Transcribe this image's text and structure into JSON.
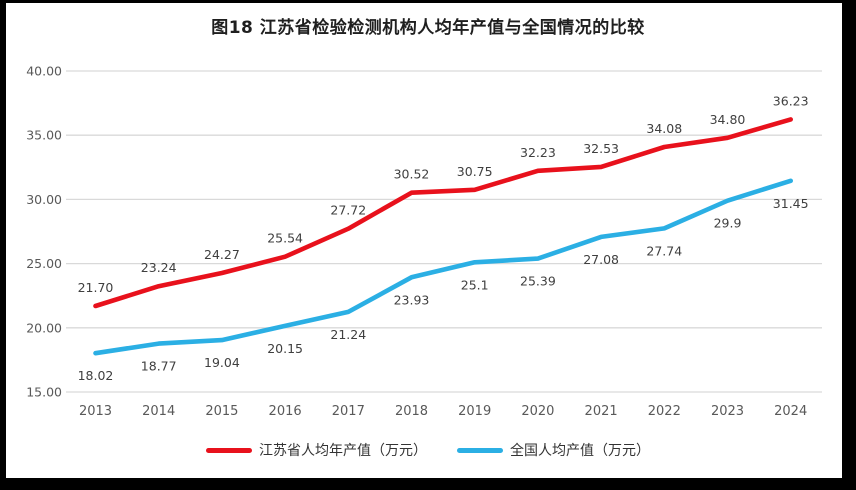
{
  "title": "图18  江苏省检验检测机构人均年产值与全国情况的比较",
  "chart_data": {
    "type": "line",
    "title": "图18  江苏省检验检测机构人均年产值与全国情况的比较",
    "categories": [
      "2013",
      "2014",
      "2015",
      "2016",
      "2017",
      "2018",
      "2019",
      "2020",
      "2021",
      "2022",
      "2023",
      "2024"
    ],
    "series": [
      {
        "name": "江苏省人均年产值（万元）",
        "color": "#e8111c",
        "values": [
          21.7,
          23.24,
          24.27,
          25.54,
          27.72,
          30.52,
          30.75,
          32.23,
          32.53,
          34.08,
          34.8,
          36.23
        ],
        "labels": [
          "21.70",
          "23.24",
          "24.27",
          "25.54",
          "27.72",
          "30.52",
          "30.75",
          "32.23",
          "32.53",
          "34.08",
          "34.80",
          "36.23"
        ],
        "label_position": "above"
      },
      {
        "name": "全国人均产值（万元）",
        "color": "#2bafe4",
        "values": [
          18.02,
          18.77,
          19.04,
          20.15,
          21.24,
          23.93,
          25.1,
          25.39,
          27.08,
          27.74,
          29.9,
          31.45
        ],
        "labels": [
          "18.02",
          "18.77",
          "19.04",
          "20.15",
          "21.24",
          "23.93",
          "25.1",
          "25.39",
          "27.08",
          "27.74",
          "29.9",
          "31.45"
        ],
        "label_position": "below"
      }
    ],
    "ylim": [
      15,
      40
    ],
    "yticks": [
      {
        "value": 40,
        "label": "40.00"
      },
      {
        "value": 35,
        "label": "35.00"
      },
      {
        "value": 30,
        "label": "30.00"
      },
      {
        "value": 25,
        "label": "25.00"
      },
      {
        "value": 20,
        "label": "20.00"
      },
      {
        "value": 15,
        "label": "15.00"
      }
    ],
    "grid": true,
    "legend_position": "bottom"
  },
  "colors": {
    "grid": "#d9d9d9",
    "tick_label": "#595959",
    "data_label": "#3f3f3f",
    "title": "#1f1f1f",
    "frame": "#000000",
    "background": "#ffffff"
  }
}
